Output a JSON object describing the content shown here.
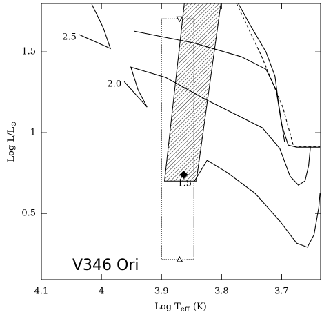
{
  "chart_data": {
    "type": "line",
    "xlabel": {
      "text": "Log T",
      "sub": "eff",
      "unit": "(K)"
    },
    "ylabel": {
      "text": "Log L/L",
      "sub": "⊙"
    },
    "annotation": "V346 Ori",
    "xlim": [
      4.1,
      3.635
    ],
    "ylim": [
      0.09,
      1.8
    ],
    "xticks": [
      4.1,
      4,
      3.9,
      3.8,
      3.7
    ],
    "yticks": [
      0.5,
      1,
      1.5
    ],
    "series": [
      {
        "name": "2.5",
        "color": "#000000",
        "x": [
          4.037,
          3.985,
          3.997,
          4.016
        ],
        "values": [
          1.607,
          1.521,
          1.65,
          1.795
        ]
      },
      {
        "name": "2.0",
        "color": "#000000",
        "x": [
          3.962,
          3.924,
          3.939,
          3.951,
          3.893,
          3.824,
          3.732,
          3.703,
          3.686,
          3.672,
          3.661,
          3.655,
          3.652
        ],
        "values": [
          1.316,
          1.158,
          1.265,
          1.406,
          1.342,
          1.201,
          1.03,
          0.902,
          0.731,
          0.675,
          0.701,
          0.795,
          0.91
        ]
      },
      {
        "name": "1.5",
        "color": "#000000",
        "x": [
          3.845,
          3.824,
          3.79,
          3.744,
          3.703,
          3.675,
          3.657,
          3.646,
          3.638,
          3.636
        ],
        "values": [
          0.701,
          0.829,
          0.752,
          0.624,
          0.453,
          0.316,
          0.291,
          0.368,
          0.538,
          0.624
        ]
      },
      {
        "color": "#000000",
        "x": [
          3.945,
          3.847,
          3.767,
          3.726,
          3.709,
          3.7,
          3.689,
          3.675,
          3.636
        ],
        "values": [
          1.628,
          1.556,
          1.47,
          1.393,
          1.265,
          1.051,
          0.923,
          0.91,
          0.91
        ]
      },
      {
        "color": "#000000",
        "x": [
          3.772,
          3.753,
          3.726,
          3.711,
          3.705,
          3.695
        ],
        "values": [
          1.799,
          1.671,
          1.5,
          1.35,
          1.179,
          0.944
        ]
      },
      {
        "color": "#000000",
        "style": "dashed",
        "x": [
          3.775,
          3.734,
          3.698,
          3.68,
          3.636
        ],
        "values": [
          1.8,
          1.479,
          1.158,
          0.915,
          0.915
        ]
      }
    ],
    "region": {
      "x": [
        3.895,
        3.862,
        3.801,
        3.842
      ],
      "y": [
        0.7,
        1.8,
        1.8,
        0.7
      ]
    },
    "observed": {
      "x": 3.863,
      "y": 0.74,
      "error_box": {
        "x": [
          3.9,
          3.846
        ],
        "y": [
          0.214,
          1.705
        ]
      }
    }
  }
}
